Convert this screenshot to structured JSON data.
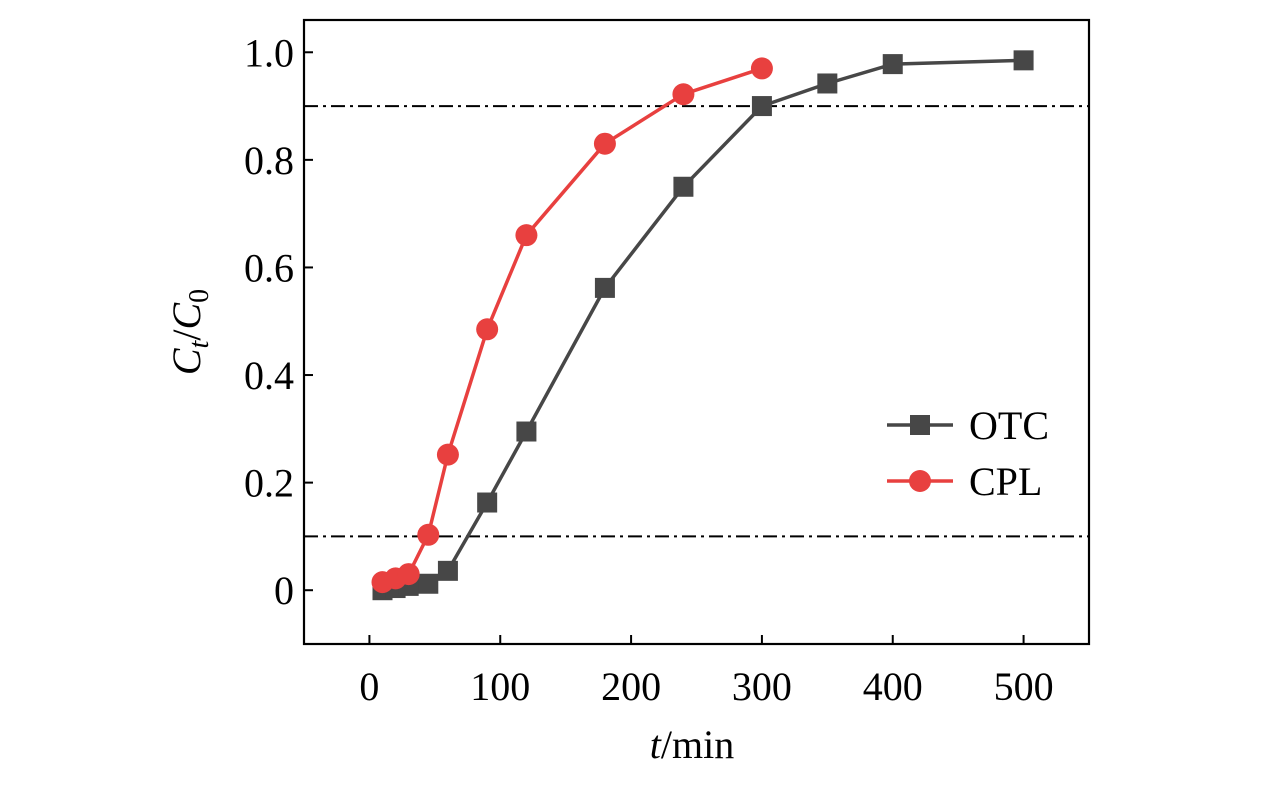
{
  "chart_data": {
    "type": "line",
    "title": "",
    "xlabel": {
      "italic": "t",
      "rest": "/min"
    },
    "ylabel": {
      "c1": "C",
      "sub1": "t",
      "slash": "/",
      "c2": "C",
      "sub2": "0"
    },
    "xlim": [
      -50,
      550
    ],
    "ylim": [
      -0.1,
      1.06
    ],
    "xticks": [
      0,
      100,
      200,
      300,
      400,
      500
    ],
    "xtick_labels": [
      "0",
      "100",
      "200",
      "300",
      "400",
      "500"
    ],
    "yticks": [
      0,
      0.2,
      0.4,
      0.6,
      0.8,
      1.0
    ],
    "ytick_labels": [
      "0",
      "0.2",
      "0.4",
      "0.6",
      "0.8",
      "1.0"
    ],
    "reference_lines": [
      0.1,
      0.9
    ],
    "legend_position": "right-center",
    "series": [
      {
        "name": "OTC",
        "color": "#474747",
        "marker": "square",
        "x": [
          10,
          20,
          30,
          45,
          60,
          90,
          120,
          180,
          240,
          300,
          350,
          400,
          500
        ],
        "y": [
          0.0,
          0.004,
          0.008,
          0.012,
          0.036,
          0.163,
          0.295,
          0.562,
          0.75,
          0.9,
          0.942,
          0.978,
          0.985
        ]
      },
      {
        "name": "CPL",
        "color": "#E8403F",
        "marker": "circle",
        "x": [
          10,
          20,
          30,
          45,
          60,
          90,
          120,
          180,
          240,
          300
        ],
        "y": [
          0.015,
          0.022,
          0.03,
          0.103,
          0.252,
          0.485,
          0.66,
          0.83,
          0.922,
          0.97
        ]
      }
    ]
  }
}
